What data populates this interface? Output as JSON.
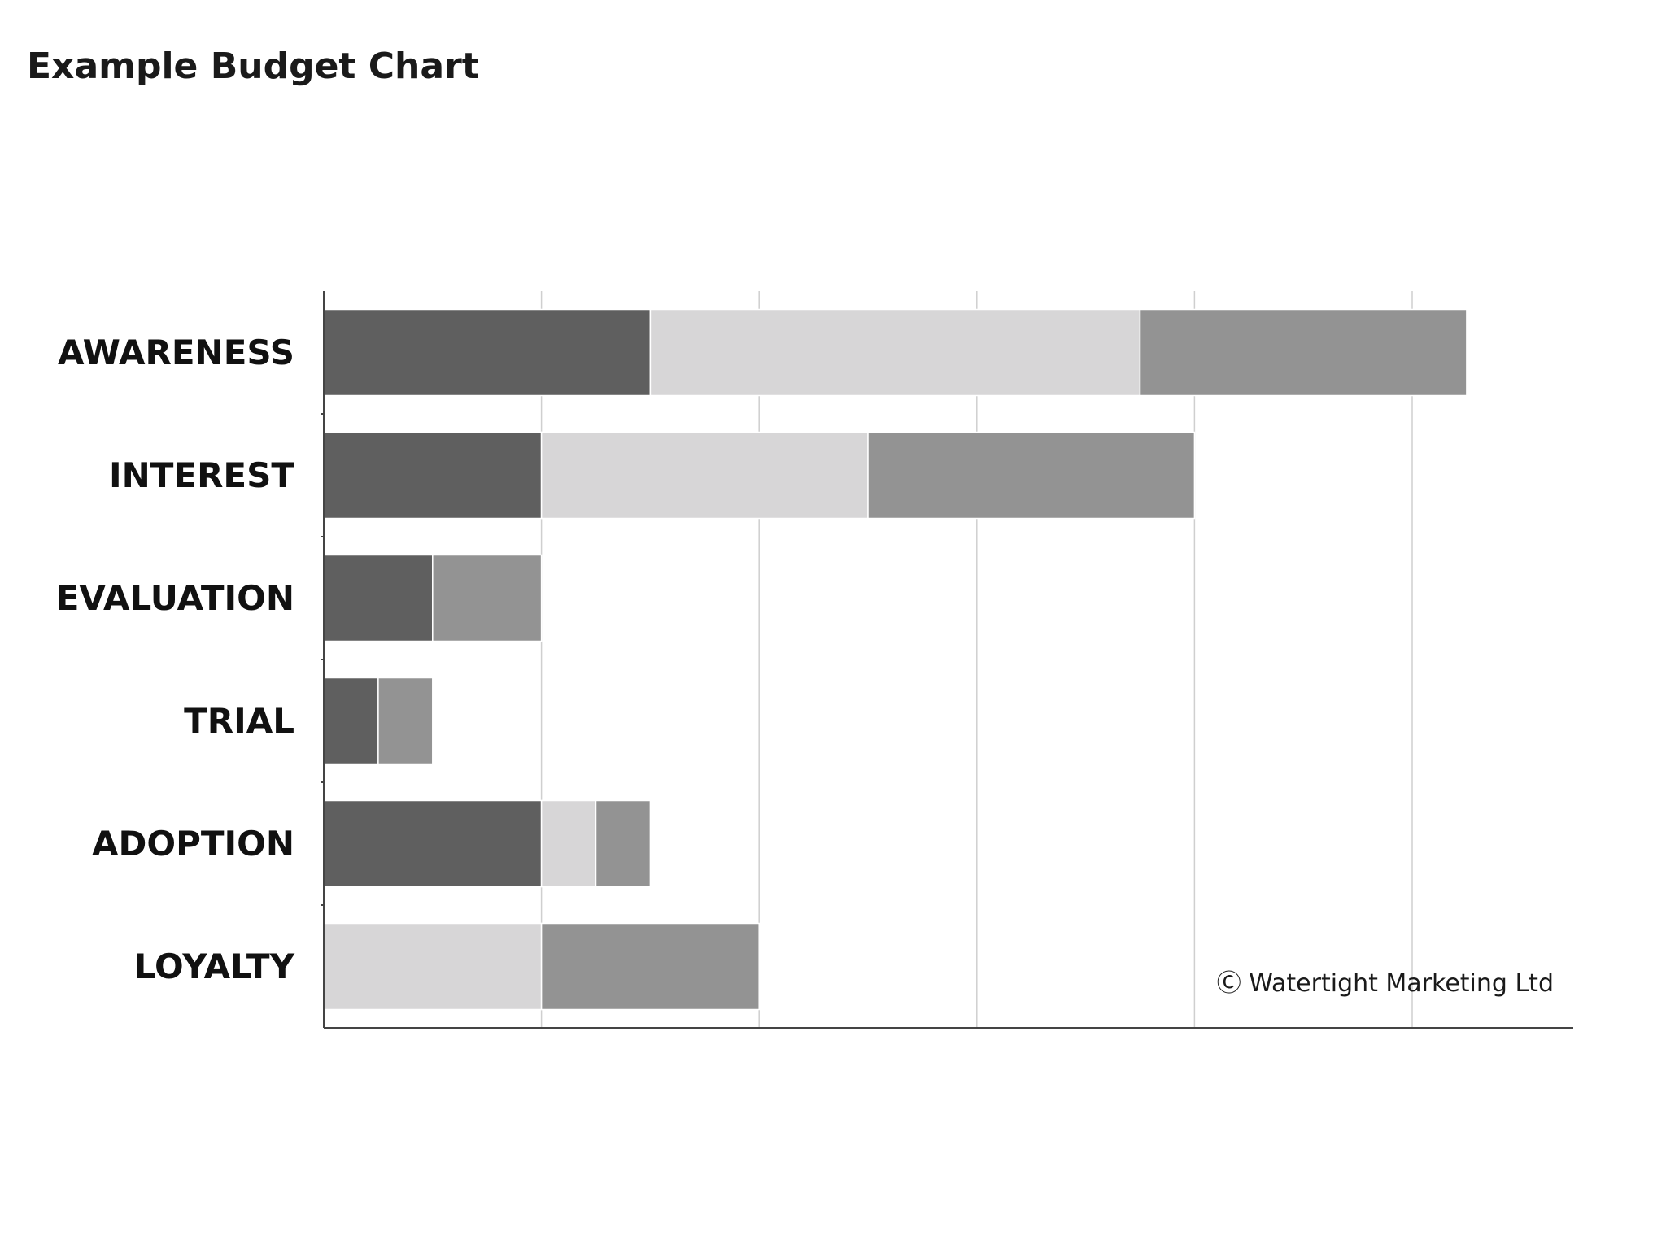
{
  "chart_data": {
    "type": "bar",
    "orientation": "horizontal",
    "stacked": true,
    "title": "Example Budget Chart",
    "xlabel": "",
    "ylabel": "",
    "categories": [
      "AWARENESS",
      "INTEREST",
      "EVALUATION",
      "TRIAL",
      "ADOPTION",
      "LOYALTY"
    ],
    "series": [
      {
        "color": "#5f5f5f",
        "values": [
          6,
          4,
          2,
          1,
          4,
          0
        ]
      },
      {
        "color": "#d7d6d7",
        "values": [
          9,
          6,
          0,
          0,
          1,
          4
        ]
      },
      {
        "color": "#939393",
        "values": [
          6,
          6,
          2,
          1,
          1,
          4
        ]
      }
    ],
    "xlim": [
      0,
      23
    ],
    "x_grid_step": 4,
    "grid": true,
    "tick_labels_shown": false,
    "legend": "none",
    "annotation": "Ⓒ Watertight Marketing Ltd"
  }
}
